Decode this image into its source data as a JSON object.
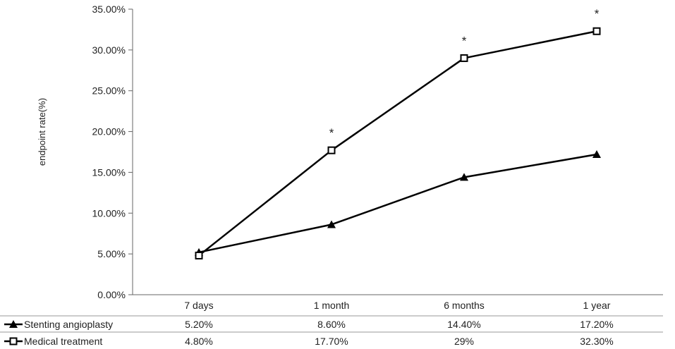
{
  "chart_data": {
    "type": "line",
    "ylabel": "endpoint rate(%)",
    "ylim": [
      0,
      35
    ],
    "yticks": [
      "0.00%",
      "5.00%",
      "10.00%",
      "15.00%",
      "20.00%",
      "25.00%",
      "30.00%",
      "35.00%"
    ],
    "categories": [
      "7 days",
      "1 month",
      "6 months",
      "1 year"
    ],
    "series": [
      {
        "name": "Stenting angioplasty",
        "marker": "triangle",
        "values": [
          5.2,
          8.6,
          14.4,
          17.2
        ],
        "labels": [
          "5.20%",
          "8.60%",
          "14.40%",
          "17.20%"
        ]
      },
      {
        "name": "Medical treatment",
        "marker": "square",
        "values": [
          4.8,
          17.7,
          29,
          32.3
        ],
        "labels": [
          "4.80%",
          "17.70%",
          "29%",
          "32.30%"
        ]
      }
    ],
    "significance_marker": "*",
    "significant_categories": [
      1,
      2,
      3
    ],
    "line_color": "#000000",
    "grid": false,
    "legend": "data table below the plot"
  }
}
